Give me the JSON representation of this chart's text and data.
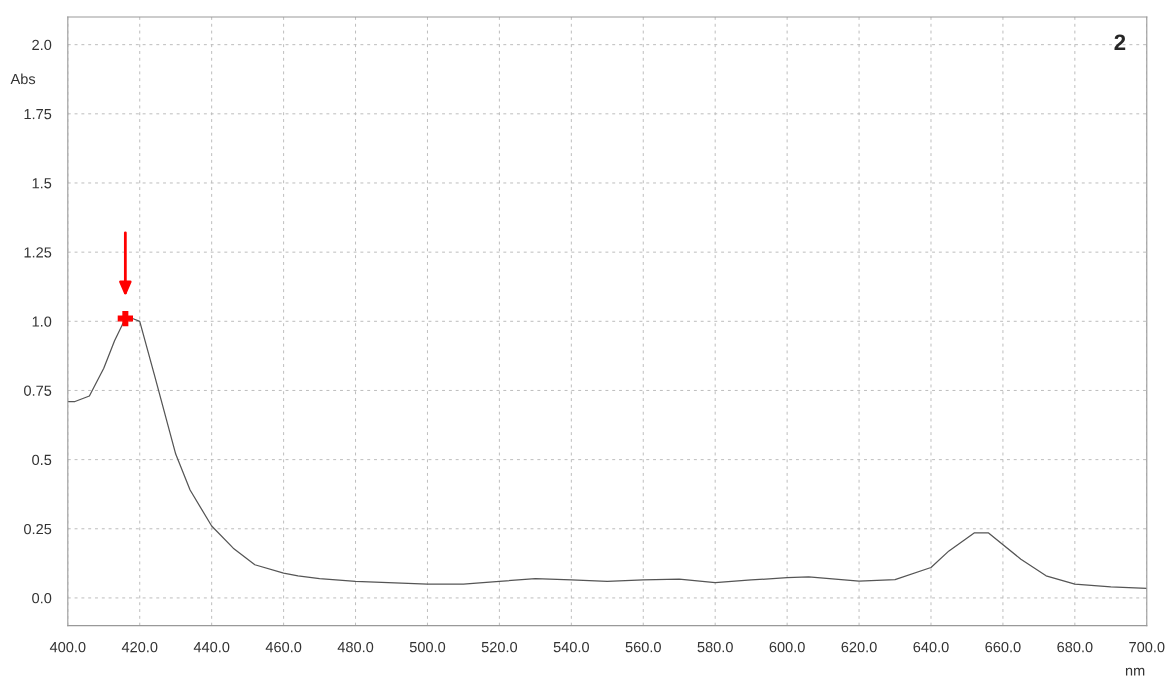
{
  "chart_data": {
    "type": "line",
    "x": [
      400,
      402,
      406,
      410,
      413,
      416,
      418,
      420,
      424,
      430,
      434,
      440,
      446,
      452,
      460,
      464,
      470,
      480,
      500,
      510,
      520,
      530,
      540,
      550,
      560,
      570,
      580,
      590,
      600,
      606,
      620,
      630,
      640,
      645,
      652,
      656,
      665,
      672,
      680,
      690,
      700
    ],
    "series": [
      {
        "color": "#555555",
        "values": [
          0.71,
          0.71,
          0.73,
          0.83,
          0.93,
          1.01,
          1.01,
          1.0,
          0.81,
          0.52,
          0.39,
          0.26,
          0.18,
          0.12,
          0.09,
          0.08,
          0.07,
          0.06,
          0.05,
          0.05,
          0.06,
          0.07,
          0.065,
          0.06,
          0.065,
          0.068,
          0.055,
          0.065,
          0.073,
          0.076,
          0.061,
          0.066,
          0.11,
          0.17,
          0.235,
          0.235,
          0.14,
          0.08,
          0.05,
          0.04,
          0.035
        ]
      }
    ],
    "xlabel": "nm",
    "ylabel": "Abs",
    "xlim": [
      400,
      700
    ],
    "ylim": [
      -0.1,
      2.1
    ],
    "xticks": [
      {
        "value": 400,
        "label": "400.0"
      },
      {
        "value": 420,
        "label": "420.0"
      },
      {
        "value": 440,
        "label": "440.0"
      },
      {
        "value": 460,
        "label": "460.0"
      },
      {
        "value": 480,
        "label": "480.0"
      },
      {
        "value": 500,
        "label": "500.0"
      },
      {
        "value": 520,
        "label": "520.0"
      },
      {
        "value": 540,
        "label": "540.0"
      },
      {
        "value": 560,
        "label": "560.0"
      },
      {
        "value": 580,
        "label": "580.0"
      },
      {
        "value": 600,
        "label": "600.0"
      },
      {
        "value": 620,
        "label": "620.0"
      },
      {
        "value": 640,
        "label": "640.0"
      },
      {
        "value": 660,
        "label": "660.0"
      },
      {
        "value": 680,
        "label": "680.0"
      },
      {
        "value": 700,
        "label": "700.0"
      }
    ],
    "yticks": [
      {
        "value": 0,
        "label": "0.0"
      },
      0.25,
      0.5,
      0.75,
      {
        "value": 1,
        "label": "1.0"
      },
      1.25,
      1.5,
      1.75,
      {
        "value": 2,
        "label": "2.0"
      }
    ],
    "grid": true,
    "line_style": "solid",
    "marker": "none",
    "annotations": [
      "2"
    ]
  }
}
